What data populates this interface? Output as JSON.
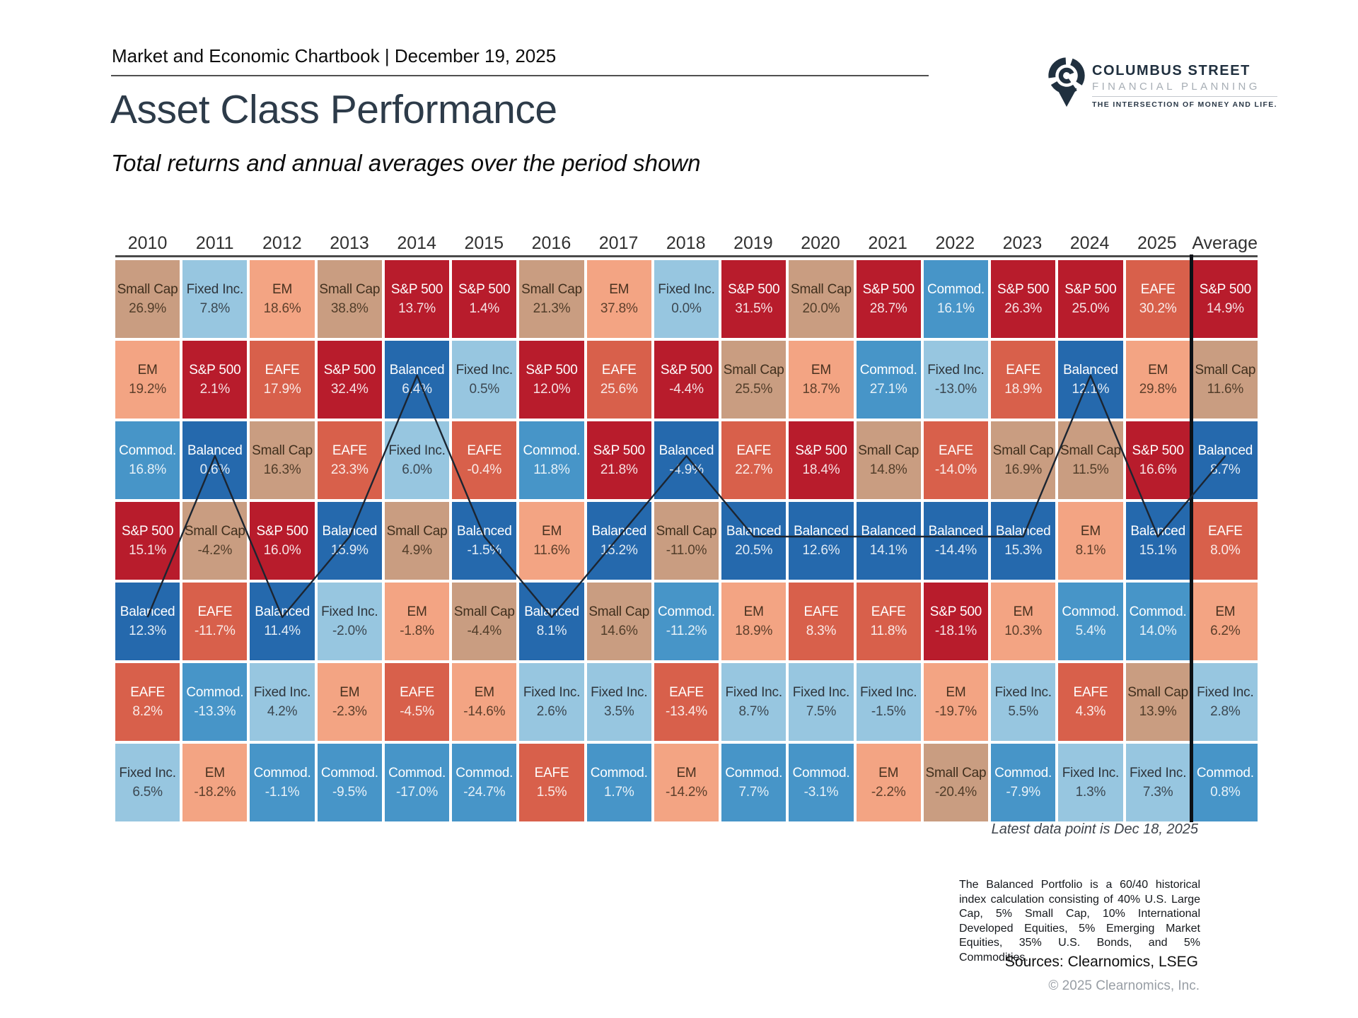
{
  "header": {
    "kicker": "Market and Economic Chartbook | December 19, 2025"
  },
  "logo": {
    "name": "COLUMBUS STREET",
    "sub": "FINANCIAL PLANNING",
    "tagline": "THE INTERSECTION OF MONEY AND LIFE.",
    "color": "#20303f"
  },
  "title": "Asset Class Performance",
  "subtitle": "Total returns and annual averages over the period shown",
  "footnote": "Latest data point is Dec 18, 2025",
  "disclosure": "The Balanced Portfolio is a 60/40 historical index calculation consisting of 40% U.S. Large Cap, 5% Small Cap, 10% International Developed Equities, 5% Emerging Market Equities, 35% U.S. Bonds, and 5% Commodities.",
  "sources": "Sources: Clearnomics, LSEG",
  "copyright": "© 2025 Clearnomics, Inc.",
  "assets": {
    "S&P 500": {
      "color": "#b81c2c",
      "text": "light",
      "text_color": "#ffffff"
    },
    "EAFE": {
      "color": "#d8604b",
      "text": "light",
      "text_color": "#ffffff"
    },
    "EM": {
      "color": "#f3a483",
      "text": "dark",
      "text_color": "#47311f"
    },
    "Small Cap": {
      "color": "#c99d81",
      "text": "dark",
      "text_color": "#402f1d"
    },
    "Fixed Inc.": {
      "color": "#97c6e0",
      "text": "dark",
      "text_color": "#2e353c"
    },
    "Commod.": {
      "color": "#4795c8",
      "text": "light",
      "text_color": "#ffffff"
    },
    "Balanced": {
      "color": "#2569ad",
      "text": "light",
      "text_color": "#ffffff"
    }
  },
  "line_overlay": {
    "asset": "Balanced",
    "color": "#1c2531"
  },
  "chart_data": {
    "type": "heatmap",
    "title": "Asset Class Performance",
    "subtitle": "Total returns and annual averages over the period shown",
    "description": "Periodic-table style chart ranking asset class total returns within each year, best (top) to worst (bottom); final column is the annual average over the period. A dark line traces the Balanced portfolio rank across years.",
    "legend_position": "none",
    "columns": [
      {
        "label": "2010",
        "cells": [
          {
            "asset": "Small Cap",
            "value": "26.9%"
          },
          {
            "asset": "EM",
            "value": "19.2%"
          },
          {
            "asset": "Commod.",
            "value": "16.8%"
          },
          {
            "asset": "S&P 500",
            "value": "15.1%"
          },
          {
            "asset": "Balanced",
            "value": "12.3%"
          },
          {
            "asset": "EAFE",
            "value": "8.2%"
          },
          {
            "asset": "Fixed Inc.",
            "value": "6.5%"
          }
        ]
      },
      {
        "label": "2011",
        "cells": [
          {
            "asset": "Fixed Inc.",
            "value": "7.8%"
          },
          {
            "asset": "S&P 500",
            "value": "2.1%"
          },
          {
            "asset": "Balanced",
            "value": "0.6%"
          },
          {
            "asset": "Small Cap",
            "value": "-4.2%"
          },
          {
            "asset": "EAFE",
            "value": "-11.7%"
          },
          {
            "asset": "Commod.",
            "value": "-13.3%"
          },
          {
            "asset": "EM",
            "value": "-18.2%"
          }
        ]
      },
      {
        "label": "2012",
        "cells": [
          {
            "asset": "EM",
            "value": "18.6%"
          },
          {
            "asset": "EAFE",
            "value": "17.9%"
          },
          {
            "asset": "Small Cap",
            "value": "16.3%"
          },
          {
            "asset": "S&P 500",
            "value": "16.0%"
          },
          {
            "asset": "Balanced",
            "value": "11.4%"
          },
          {
            "asset": "Fixed Inc.",
            "value": "4.2%"
          },
          {
            "asset": "Commod.",
            "value": "-1.1%"
          }
        ]
      },
      {
        "label": "2013",
        "cells": [
          {
            "asset": "Small Cap",
            "value": "38.8%"
          },
          {
            "asset": "S&P 500",
            "value": "32.4%"
          },
          {
            "asset": "EAFE",
            "value": "23.3%"
          },
          {
            "asset": "Balanced",
            "value": "15.9%"
          },
          {
            "asset": "Fixed Inc.",
            "value": "-2.0%"
          },
          {
            "asset": "EM",
            "value": "-2.3%"
          },
          {
            "asset": "Commod.",
            "value": "-9.5%"
          }
        ]
      },
      {
        "label": "2014",
        "cells": [
          {
            "asset": "S&P 500",
            "value": "13.7%"
          },
          {
            "asset": "Balanced",
            "value": "6.4%"
          },
          {
            "asset": "Fixed Inc.",
            "value": "6.0%"
          },
          {
            "asset": "Small Cap",
            "value": "4.9%"
          },
          {
            "asset": "EM",
            "value": "-1.8%"
          },
          {
            "asset": "EAFE",
            "value": "-4.5%"
          },
          {
            "asset": "Commod.",
            "value": "-17.0%"
          }
        ]
      },
      {
        "label": "2015",
        "cells": [
          {
            "asset": "S&P 500",
            "value": "1.4%"
          },
          {
            "asset": "Fixed Inc.",
            "value": "0.5%"
          },
          {
            "asset": "EAFE",
            "value": "-0.4%"
          },
          {
            "asset": "Balanced",
            "value": "-1.5%"
          },
          {
            "asset": "Small Cap",
            "value": "-4.4%"
          },
          {
            "asset": "EM",
            "value": "-14.6%"
          },
          {
            "asset": "Commod.",
            "value": "-24.7%"
          }
        ]
      },
      {
        "label": "2016",
        "cells": [
          {
            "asset": "Small Cap",
            "value": "21.3%"
          },
          {
            "asset": "S&P 500",
            "value": "12.0%"
          },
          {
            "asset": "Commod.",
            "value": "11.8%"
          },
          {
            "asset": "EM",
            "value": "11.6%"
          },
          {
            "asset": "Balanced",
            "value": "8.1%"
          },
          {
            "asset": "Fixed Inc.",
            "value": "2.6%"
          },
          {
            "asset": "EAFE",
            "value": "1.5%"
          }
        ]
      },
      {
        "label": "2017",
        "cells": [
          {
            "asset": "EM",
            "value": "37.8%"
          },
          {
            "asset": "EAFE",
            "value": "25.6%"
          },
          {
            "asset": "S&P 500",
            "value": "21.8%"
          },
          {
            "asset": "Balanced",
            "value": "15.2%"
          },
          {
            "asset": "Small Cap",
            "value": "14.6%"
          },
          {
            "asset": "Fixed Inc.",
            "value": "3.5%"
          },
          {
            "asset": "Commod.",
            "value": "1.7%"
          }
        ]
      },
      {
        "label": "2018",
        "cells": [
          {
            "asset": "Fixed Inc.",
            "value": "0.0%"
          },
          {
            "asset": "S&P 500",
            "value": "-4.4%"
          },
          {
            "asset": "Balanced",
            "value": "-4.9%"
          },
          {
            "asset": "Small Cap",
            "value": "-11.0%"
          },
          {
            "asset": "Commod.",
            "value": "-11.2%"
          },
          {
            "asset": "EAFE",
            "value": "-13.4%"
          },
          {
            "asset": "EM",
            "value": "-14.2%"
          }
        ]
      },
      {
        "label": "2019",
        "cells": [
          {
            "asset": "S&P 500",
            "value": "31.5%"
          },
          {
            "asset": "Small Cap",
            "value": "25.5%"
          },
          {
            "asset": "EAFE",
            "value": "22.7%"
          },
          {
            "asset": "Balanced",
            "value": "20.5%"
          },
          {
            "asset": "EM",
            "value": "18.9%"
          },
          {
            "asset": "Fixed Inc.",
            "value": "8.7%"
          },
          {
            "asset": "Commod.",
            "value": "7.7%"
          }
        ]
      },
      {
        "label": "2020",
        "cells": [
          {
            "asset": "Small Cap",
            "value": "20.0%"
          },
          {
            "asset": "EM",
            "value": "18.7%"
          },
          {
            "asset": "S&P 500",
            "value": "18.4%"
          },
          {
            "asset": "Balanced",
            "value": "12.6%"
          },
          {
            "asset": "EAFE",
            "value": "8.3%"
          },
          {
            "asset": "Fixed Inc.",
            "value": "7.5%"
          },
          {
            "asset": "Commod.",
            "value": "-3.1%"
          }
        ]
      },
      {
        "label": "2021",
        "cells": [
          {
            "asset": "S&P 500",
            "value": "28.7%"
          },
          {
            "asset": "Commod.",
            "value": "27.1%"
          },
          {
            "asset": "Small Cap",
            "value": "14.8%"
          },
          {
            "asset": "Balanced",
            "value": "14.1%"
          },
          {
            "asset": "EAFE",
            "value": "11.8%"
          },
          {
            "asset": "Fixed Inc.",
            "value": "-1.5%"
          },
          {
            "asset": "EM",
            "value": "-2.2%"
          }
        ]
      },
      {
        "label": "2022",
        "cells": [
          {
            "asset": "Commod.",
            "value": "16.1%"
          },
          {
            "asset": "Fixed Inc.",
            "value": "-13.0%"
          },
          {
            "asset": "EAFE",
            "value": "-14.0%"
          },
          {
            "asset": "Balanced",
            "value": "-14.4%"
          },
          {
            "asset": "S&P 500",
            "value": "-18.1%"
          },
          {
            "asset": "EM",
            "value": "-19.7%"
          },
          {
            "asset": "Small Cap",
            "value": "-20.4%"
          }
        ]
      },
      {
        "label": "2023",
        "cells": [
          {
            "asset": "S&P 500",
            "value": "26.3%"
          },
          {
            "asset": "EAFE",
            "value": "18.9%"
          },
          {
            "asset": "Small Cap",
            "value": "16.9%"
          },
          {
            "asset": "Balanced",
            "value": "15.3%"
          },
          {
            "asset": "EM",
            "value": "10.3%"
          },
          {
            "asset": "Fixed Inc.",
            "value": "5.5%"
          },
          {
            "asset": "Commod.",
            "value": "-7.9%"
          }
        ]
      },
      {
        "label": "2024",
        "cells": [
          {
            "asset": "S&P 500",
            "value": "25.0%"
          },
          {
            "asset": "Balanced",
            "value": "12.1%"
          },
          {
            "asset": "Small Cap",
            "value": "11.5%"
          },
          {
            "asset": "EM",
            "value": "8.1%"
          },
          {
            "asset": "Commod.",
            "value": "5.4%"
          },
          {
            "asset": "EAFE",
            "value": "4.3%"
          },
          {
            "asset": "Fixed Inc.",
            "value": "1.3%"
          }
        ]
      },
      {
        "label": "2025",
        "cells": [
          {
            "asset": "EAFE",
            "value": "30.2%"
          },
          {
            "asset": "EM",
            "value": "29.8%"
          },
          {
            "asset": "S&P 500",
            "value": "16.6%"
          },
          {
            "asset": "Balanced",
            "value": "15.1%"
          },
          {
            "asset": "Commod.",
            "value": "14.0%"
          },
          {
            "asset": "Small Cap",
            "value": "13.9%"
          },
          {
            "asset": "Fixed Inc.",
            "value": "7.3%"
          }
        ]
      },
      {
        "label": "Average",
        "cells": [
          {
            "asset": "S&P 500",
            "value": "14.9%"
          },
          {
            "asset": "Small Cap",
            "value": "11.6%"
          },
          {
            "asset": "Balanced",
            "value": "8.7%"
          },
          {
            "asset": "EAFE",
            "value": "8.0%"
          },
          {
            "asset": "EM",
            "value": "6.2%"
          },
          {
            "asset": "Fixed Inc.",
            "value": "2.8%"
          },
          {
            "asset": "Commod.",
            "value": "0.8%"
          }
        ]
      }
    ]
  }
}
